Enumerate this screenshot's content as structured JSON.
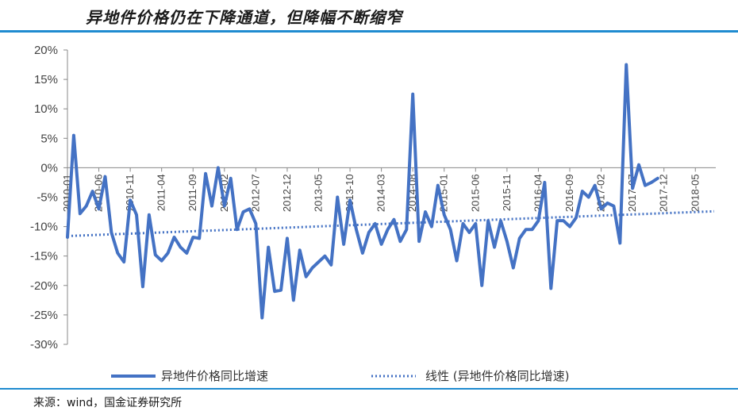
{
  "header": {
    "title": "异地件价格仍在下降通道，但降幅不断缩窄"
  },
  "footer": {
    "source": "来源：wind，国金证券研究所"
  },
  "colors": {
    "accent_rule": "#1f8bd0",
    "series_line": "#4472c4"
  },
  "chart_data": {
    "type": "line",
    "title": "异地件价格仍在下降通道，但降幅不断缩窄",
    "y_ticks": [
      "20%",
      "15%",
      "10%",
      "5%",
      "0%",
      "-5%",
      "-10%",
      "-15%",
      "-20%",
      "-25%",
      "-30%"
    ],
    "ylim": [
      -30,
      20
    ],
    "x_ticks": [
      "2010-01",
      "2010-06",
      "2010-11",
      "2011-04",
      "2011-09",
      "2012-02",
      "2012-07",
      "2012-12",
      "2013-05",
      "2013-10",
      "2014-03",
      "2014-08",
      "2015-01",
      "2015-06",
      "2015-11",
      "2016-04",
      "2016-09",
      "2017-02",
      "2017-07",
      "2017-12",
      "2018-05"
    ],
    "x_start": "2010-01",
    "x_end": "2018-08",
    "series": [
      {
        "name": "异地件价格同比增速",
        "style": "solid",
        "values": [
          -11.8,
          5.5,
          -7.8,
          -6.5,
          -4.0,
          -7.0,
          -1.5,
          -11.0,
          -14.5,
          -16.0,
          -5.5,
          -8.0,
          -20.2,
          -8.0,
          -14.8,
          -15.8,
          -14.5,
          -11.8,
          -13.5,
          -14.5,
          -11.8,
          -12.0,
          -1.0,
          -6.5,
          0.0,
          -6.5,
          -1.8,
          -10.5,
          -7.5,
          -7.0,
          -9.5,
          -25.5,
          -13.5,
          -21.0,
          -20.8,
          -12.0,
          -22.5,
          -14.0,
          -18.5,
          -17.0,
          -16.0,
          -15.0,
          -16.5,
          -5.0,
          -13.0,
          -5.5,
          -10.5,
          -14.5,
          -11.0,
          -9.5,
          -13.0,
          -10.5,
          -8.8,
          -12.5,
          -10.5,
          12.5,
          -12.5,
          -7.5,
          -10.0,
          -3.0,
          -8.0,
          -10.5,
          -15.8,
          -9.5,
          -11.0,
          -9.5,
          -20.0,
          -9.0,
          -13.5,
          -9.0,
          -12.5,
          -17.0,
          -12.0,
          -10.5,
          -10.5,
          -9.0,
          -2.5,
          -20.5,
          -9.0,
          -9.0,
          -10.0,
          -8.5,
          -4.0,
          -5.0,
          -3.0,
          -7.0,
          -6.0,
          -6.5,
          -12.8,
          17.5,
          -3.5,
          0.5,
          -3.0,
          -2.5,
          -1.8
        ]
      },
      {
        "name": "线性 (异地件价格同比增速)",
        "style": "dotted",
        "values": [
          -11.6,
          -7.4
        ]
      }
    ],
    "legend": "bottom",
    "grid": false
  }
}
